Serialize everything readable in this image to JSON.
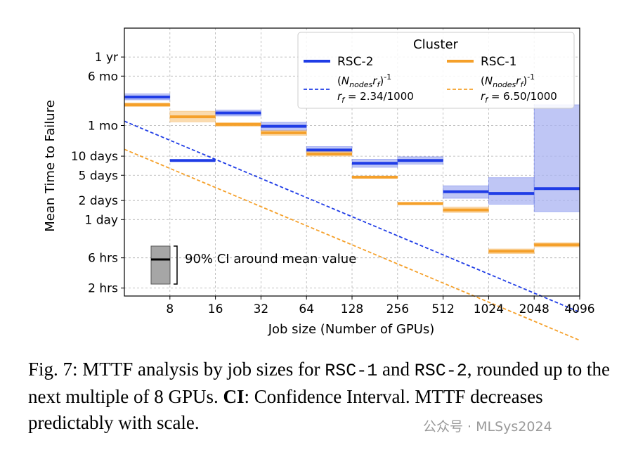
{
  "chart_data": {
    "type": "step",
    "xlabel": "Job size (Number of GPUs)",
    "ylabel": "Mean Time to Failure",
    "x_ticks": [
      "8",
      "16",
      "32",
      "64",
      "128",
      "256",
      "512",
      "1024",
      "2048",
      "4096"
    ],
    "x_range_log2": [
      2,
      12
    ],
    "y_ticks": [
      {
        "label": "1 yr",
        "hours": 8760
      },
      {
        "label": "6 mo",
        "hours": 4380
      },
      {
        "label": "1 mo",
        "hours": 730
      },
      {
        "label": "10 days",
        "hours": 240
      },
      {
        "label": "5 days",
        "hours": 120
      },
      {
        "label": "2 days",
        "hours": 48
      },
      {
        "label": "1 day",
        "hours": 24
      },
      {
        "label": "6 hrs",
        "hours": 6
      },
      {
        "label": "2 hrs",
        "hours": 2
      }
    ],
    "y_range_hours": [
      1.5,
      25000
    ],
    "legend": {
      "title": "Cluster",
      "position": "top-right",
      "rsc2_label": "RSC-2",
      "rsc1_label": "RSC-1",
      "rsc2_fit_expr": "(N_nodes r_f)^-1",
      "rsc2_fit_rate": "r_f = 2.34/1000",
      "rsc1_fit_expr": "(N_nodes r_f)^-1",
      "rsc1_fit_rate": "r_f = 6.50/1000"
    },
    "series": [
      {
        "name": "RSC-2",
        "color": "#1f3ce6",
        "fill": "#a9b3f2",
        "bins": [
          {
            "x0": 4,
            "x1": 8,
            "mean": 2050,
            "lo": 1850,
            "hi": 2300
          },
          {
            "x0": 8,
            "x1": 16,
            "mean": 205,
            "lo": 205,
            "hi": 205
          },
          {
            "x0": 16,
            "x1": 32,
            "mean": 1150,
            "lo": 1030,
            "hi": 1280
          },
          {
            "x0": 32,
            "x1": 64,
            "mean": 710,
            "lo": 610,
            "hi": 820
          },
          {
            "x0": 64,
            "x1": 128,
            "mean": 300,
            "lo": 265,
            "hi": 340
          },
          {
            "x0": 128,
            "x1": 256,
            "mean": 185,
            "lo": 160,
            "hi": 215
          },
          {
            "x0": 256,
            "x1": 512,
            "mean": 205,
            "lo": 180,
            "hi": 235
          },
          {
            "x0": 512,
            "x1": 1024,
            "mean": 66,
            "lo": 52,
            "hi": 82
          },
          {
            "x0": 1024,
            "x1": 2048,
            "mean": 62,
            "lo": 42,
            "hi": 110
          },
          {
            "x0": 2048,
            "x1": 4096,
            "mean": 74,
            "lo": 32,
            "hi": 1550
          }
        ]
      },
      {
        "name": "RSC-1",
        "color": "#f5a02a",
        "fill": "#f8cf94",
        "bins": [
          {
            "x0": 4,
            "x1": 8,
            "mean": 1550,
            "lo": 1450,
            "hi": 1660
          },
          {
            "x0": 8,
            "x1": 16,
            "mean": 1000,
            "lo": 830,
            "hi": 1230
          },
          {
            "x0": 16,
            "x1": 32,
            "mean": 760,
            "lo": 710,
            "hi": 810
          },
          {
            "x0": 32,
            "x1": 64,
            "mean": 560,
            "lo": 510,
            "hi": 610
          },
          {
            "x0": 64,
            "x1": 128,
            "mean": 260,
            "lo": 240,
            "hi": 285
          },
          {
            "x0": 128,
            "x1": 256,
            "mean": 112,
            "lo": 107,
            "hi": 117
          },
          {
            "x0": 256,
            "x1": 512,
            "mean": 43,
            "lo": 41,
            "hi": 45
          },
          {
            "x0": 512,
            "x1": 1024,
            "mean": 34,
            "lo": 31,
            "hi": 38
          },
          {
            "x0": 1024,
            "x1": 2048,
            "mean": 7.6,
            "lo": 7.0,
            "hi": 8.3
          },
          {
            "x0": 2048,
            "x1": 4096,
            "mean": 9.6,
            "lo": 8.9,
            "hi": 10.4
          }
        ]
      }
    ],
    "fits": [
      {
        "name": "RSC-2 fit",
        "color": "#1f3ce6",
        "rf_per_hour": 0.00234,
        "gpus_per_node": 8
      },
      {
        "name": "RSC-1 fit",
        "color": "#f5a02a",
        "rf_per_hour": 0.0065,
        "gpus_per_node": 8
      }
    ],
    "ci_example": {
      "label": "90% CI around mean value",
      "color": "#000000",
      "fill": "#a6a6a6"
    }
  },
  "caption": {
    "prefix": "Fig. 7: MTTF analysis by job sizes for ",
    "code1": "RSC-1",
    "and": " and ",
    "code2": "RSC-2",
    "rest1": ", rounded up to the next multiple of 8 GPUs. ",
    "ci_bold": "CI",
    "rest2": ": Confidence Interval. MTTF decreases predictably with scale."
  },
  "watermark": "公众号 · MLSys2024"
}
